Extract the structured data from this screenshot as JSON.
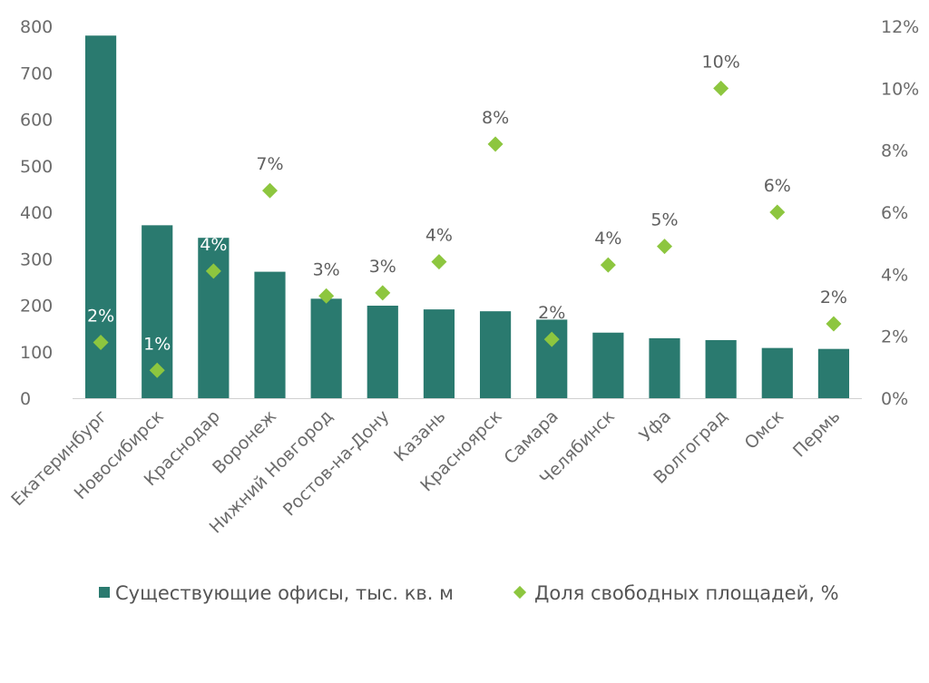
{
  "chart_data": {
    "type": "bar",
    "title": "",
    "categories": [
      "Екатеринбург",
      "Новосибирск",
      "Краснодар",
      "Воронеж",
      "Нижний Новгород",
      "Ростов-на-Дону",
      "Казань",
      "Красноярск",
      "Самара",
      "Челябинск",
      "Уфа",
      "Волгоград",
      "Омск",
      "Пермь"
    ],
    "series": [
      {
        "name": "Существующие офисы, тыс. кв. м",
        "kind": "bar",
        "axis": "left",
        "color": "#2a7a6f",
        "values": [
          780,
          372,
          345,
          272,
          214,
          199,
          191,
          187,
          169,
          141,
          129,
          125,
          108,
          106
        ]
      },
      {
        "name": "Доля свободных площадей, %",
        "kind": "scatter",
        "marker": "diamond",
        "axis": "right",
        "color": "#8dc63f",
        "values": [
          1.8,
          0.9,
          4.1,
          6.7,
          3.3,
          3.4,
          4.4,
          8.2,
          1.9,
          4.3,
          4.9,
          10.0,
          6.0,
          2.4
        ],
        "labels": [
          "2%",
          "1%",
          "4%",
          "7%",
          "3%",
          "3%",
          "4%",
          "8%",
          "2%",
          "4%",
          "5%",
          "10%",
          "6%",
          "2%"
        ]
      }
    ],
    "y_left": {
      "min": 0,
      "max": 800,
      "ticks": [
        "0",
        "100",
        "200",
        "300",
        "400",
        "500",
        "600",
        "700",
        "800"
      ]
    },
    "y_right": {
      "min": 0,
      "max": 12,
      "ticks": [
        "0%",
        "2%",
        "4%",
        "6%",
        "8%",
        "10%",
        "12%"
      ]
    },
    "grid": false,
    "legend": "bottom"
  }
}
